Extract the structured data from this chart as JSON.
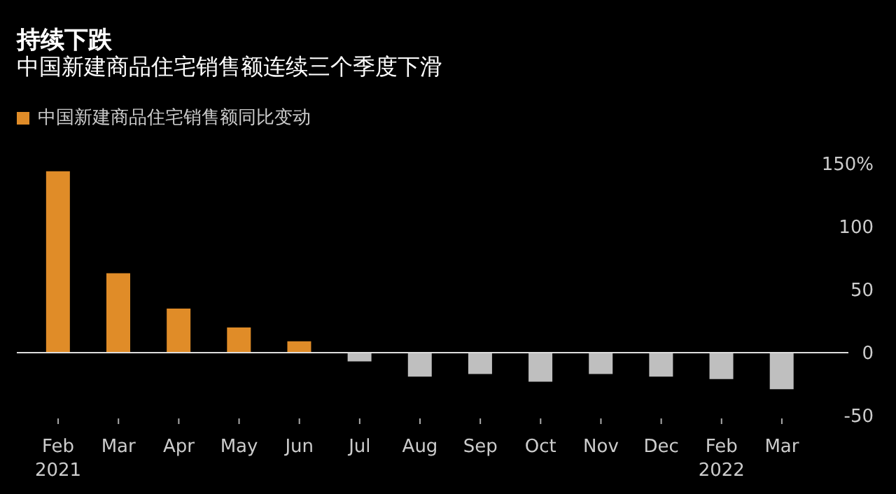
{
  "chart_data": {
    "type": "bar",
    "title": "持续下跌",
    "subtitle": "中国新建商品住宅销售额连续三个季度下滑",
    "categories": [
      "Feb\n2021",
      "Mar",
      "Apr",
      "May",
      "Jun",
      "Jul",
      "Aug",
      "Sep",
      "Oct",
      "Nov",
      "Dec",
      "Feb\n2022",
      "Mar"
    ],
    "series": [
      {
        "name": "中国新建商品住宅销售额同比变动",
        "color": "#e08c28",
        "colors": [
          "#e08c28",
          "#e08c28",
          "#e08c28",
          "#e08c28",
          "#e08c28",
          "#bfbfbf",
          "#bfbfbf",
          "#bfbfbf",
          "#bfbfbf",
          "#bfbfbf",
          "#bfbfbf",
          "#bfbfbf",
          "#bfbfbf"
        ],
        "values": [
          144,
          63,
          35,
          20,
          9,
          -7,
          -19,
          -17,
          -23,
          -17,
          -19,
          -21,
          -29
        ]
      }
    ],
    "ylim": [
      -50,
      150
    ],
    "yticks": [
      -50,
      0,
      50,
      100,
      {
        "value": 150,
        "label": "150%"
      }
    ],
    "ref_lines": [
      {
        "axis": "y",
        "value": 0,
        "color": "#dddddd"
      }
    ],
    "legend": "top left"
  }
}
